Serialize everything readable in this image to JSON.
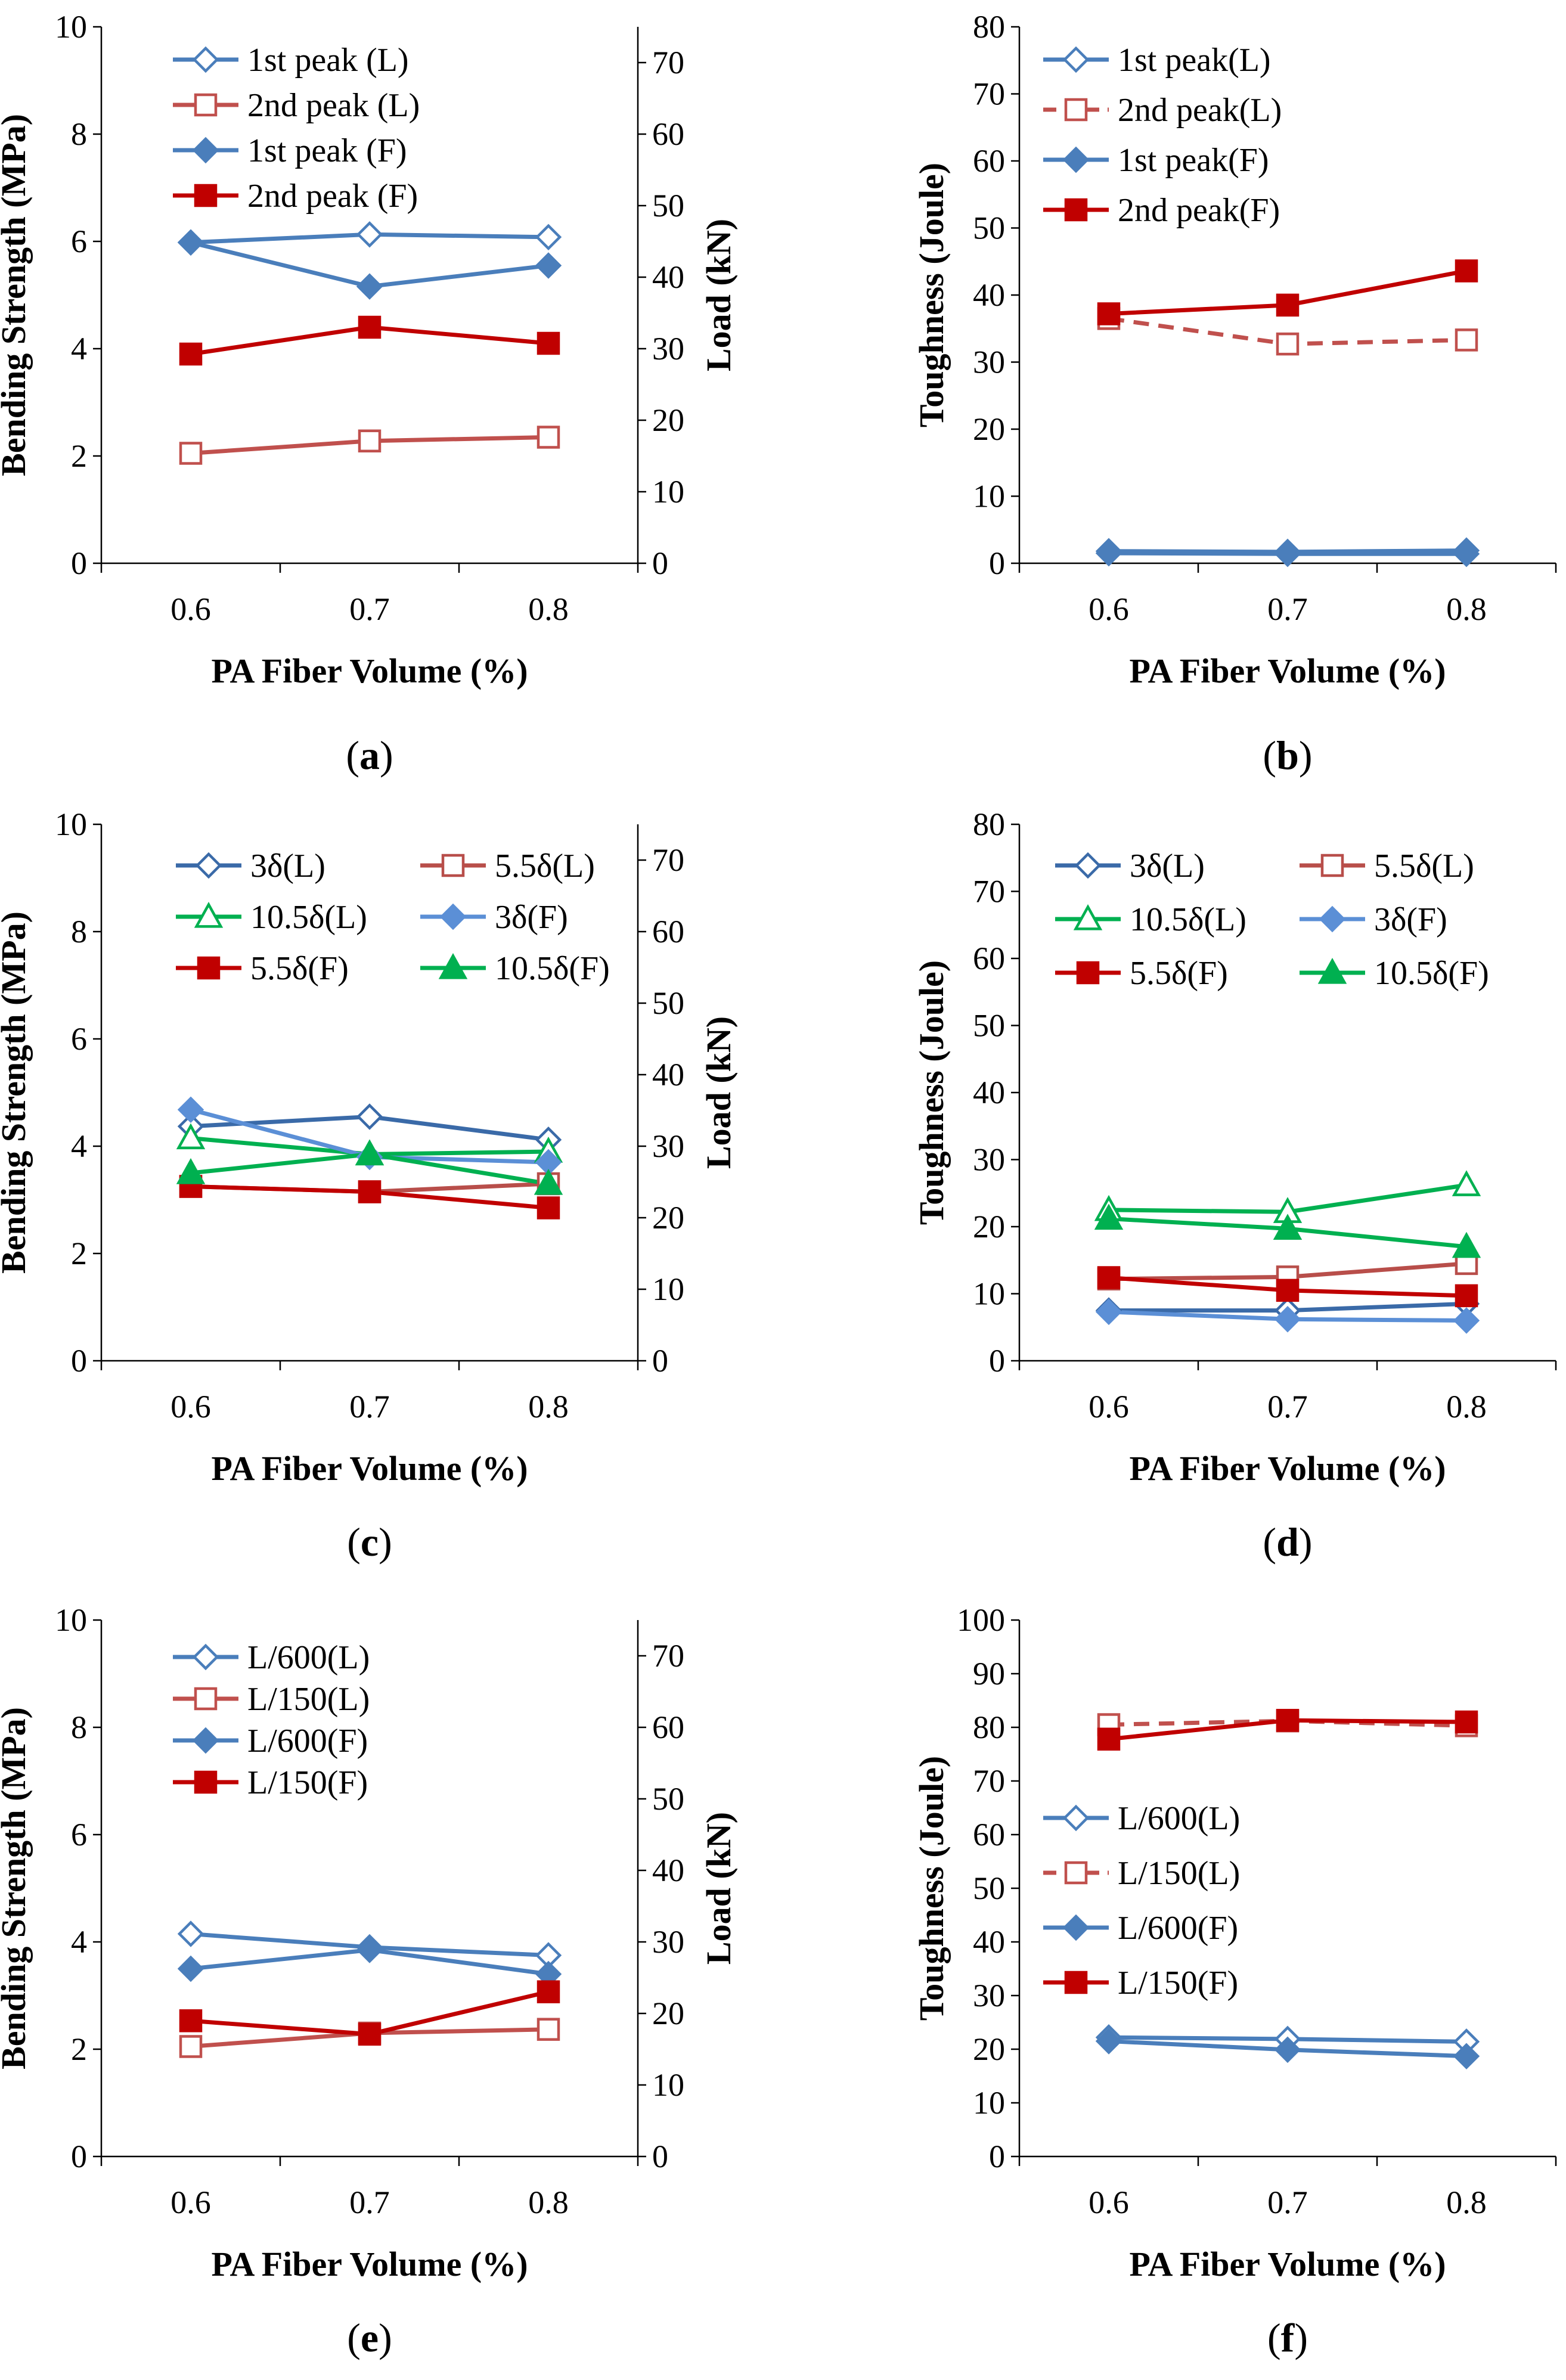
{
  "chart_data": [
    {
      "panel": "a",
      "type": "line",
      "caption": {
        "open": "(",
        "letter": "a",
        "close": ")"
      },
      "xlabel": "PA Fiber Volume (%)",
      "ylabel": "Bending Strength (MPa)",
      "y2label": "Load (kN)",
      "x": [
        0.6,
        0.7,
        0.8
      ],
      "x_ticks": [
        "0.6",
        "0.7",
        "0.8"
      ],
      "xlim": [
        0.55,
        0.85
      ],
      "ylim": [
        0,
        10
      ],
      "y_ticks": [
        "0",
        "2",
        "4",
        "6",
        "8",
        "10"
      ],
      "y2lim": [
        0,
        75
      ],
      "y2_ticks": [
        "0",
        "10",
        "20",
        "30",
        "40",
        "50",
        "60",
        "70"
      ],
      "legend_layout": "single-column",
      "series": [
        {
          "name": "1st peak (L)",
          "values": [
            5.98,
            6.13,
            6.08
          ],
          "color": "#4a7ebb",
          "marker": "diamond-open",
          "dash": false
        },
        {
          "name": "2nd peak (L)",
          "values": [
            2.05,
            2.28,
            2.35
          ],
          "color": "#c0504d",
          "marker": "square-open",
          "dash": false
        },
        {
          "name": "1st peak (F)",
          "values": [
            5.98,
            5.16,
            5.55
          ],
          "color": "#4a7ebb",
          "marker": "diamond",
          "dash": false
        },
        {
          "name": "2nd peak (F)",
          "values": [
            3.9,
            4.4,
            4.1
          ],
          "color": "#c00000",
          "marker": "square",
          "dash": false
        }
      ]
    },
    {
      "panel": "b",
      "type": "line",
      "caption": {
        "open": "(",
        "letter": "b",
        "close": ")"
      },
      "xlabel": "PA Fiber Volume (%)",
      "ylabel": "Toughness (Joule)",
      "x": [
        0.6,
        0.7,
        0.8
      ],
      "x_ticks": [
        "0.6",
        "0.7",
        "0.8"
      ],
      "xlim": [
        0.55,
        0.85
      ],
      "ylim": [
        0,
        80
      ],
      "y_ticks": [
        "0",
        "10",
        "20",
        "30",
        "40",
        "50",
        "60",
        "70",
        "80"
      ],
      "legend_layout": "single-column",
      "series": [
        {
          "name": "1st peak(L)",
          "values": [
            1.8,
            1.7,
            1.9
          ],
          "color": "#4a7ebb",
          "marker": "diamond-open",
          "dash": false
        },
        {
          "name": "2nd peak(L)",
          "values": [
            36.5,
            32.7,
            33.3
          ],
          "color": "#c0504d",
          "marker": "square-open",
          "dash": true
        },
        {
          "name": "1st peak(F)",
          "values": [
            1.5,
            1.4,
            1.4
          ],
          "color": "#4a7ebb",
          "marker": "diamond",
          "dash": false
        },
        {
          "name": "2nd peak(F)",
          "values": [
            37.2,
            38.5,
            43.6
          ],
          "color": "#c00000",
          "marker": "square",
          "dash": false
        }
      ]
    },
    {
      "panel": "c",
      "type": "line",
      "caption": {
        "open": "(",
        "letter": "c",
        "close": ")"
      },
      "xlabel": "PA Fiber Volume (%)",
      "ylabel": "Bending Strength (MPa)",
      "y2label": "Load (kN)",
      "x": [
        0.6,
        0.7,
        0.8
      ],
      "x_ticks": [
        "0.6",
        "0.7",
        "0.8"
      ],
      "xlim": [
        0.55,
        0.85
      ],
      "ylim": [
        0,
        10
      ],
      "y_ticks": [
        "0",
        "2",
        "4",
        "6",
        "8",
        "10"
      ],
      "y2lim": [
        0,
        75
      ],
      "y2_ticks": [
        "0",
        "10",
        "20",
        "30",
        "40",
        "50",
        "60",
        "70"
      ],
      "legend_layout": "two-column",
      "series": [
        {
          "name": "3δ(L)",
          "values": [
            4.37,
            4.55,
            4.12
          ],
          "color": "#3a6aa8",
          "marker": "diamond-open",
          "dash": false
        },
        {
          "name": "5.5δ(L)",
          "values": [
            3.25,
            3.15,
            3.3
          ],
          "color": "#b84e4a",
          "marker": "square-open",
          "dash": false
        },
        {
          "name": "10.5δ(L)",
          "values": [
            4.15,
            3.85,
            3.9
          ],
          "color": "#00b050",
          "marker": "triangle-open",
          "dash": false
        },
        {
          "name": "3δ(F)",
          "values": [
            4.68,
            3.8,
            3.7
          ],
          "color": "#5b8fd6",
          "marker": "diamond",
          "dash": false
        },
        {
          "name": "5.5δ(F)",
          "values": [
            3.25,
            3.15,
            2.85
          ],
          "color": "#c00000",
          "marker": "square",
          "dash": false
        },
        {
          "name": "10.5δ(F)",
          "values": [
            3.5,
            3.85,
            3.3
          ],
          "color": "#00b050",
          "marker": "triangle",
          "dash": false
        }
      ]
    },
    {
      "panel": "d",
      "type": "line",
      "caption": {
        "open": "(",
        "letter": "d",
        "close": ")"
      },
      "xlabel": "PA Fiber Volume (%)",
      "ylabel": "Toughness (Joule)",
      "x": [
        0.6,
        0.7,
        0.8
      ],
      "x_ticks": [
        "0.6",
        "0.7",
        "0.8"
      ],
      "xlim": [
        0.55,
        0.85
      ],
      "ylim": [
        0,
        80
      ],
      "y_ticks": [
        "0",
        "10",
        "20",
        "30",
        "40",
        "50",
        "60",
        "70",
        "80"
      ],
      "legend_layout": "two-column",
      "series": [
        {
          "name": "3δ(L)",
          "values": [
            7.5,
            7.5,
            8.5
          ],
          "color": "#3a6aa8",
          "marker": "diamond-open",
          "dash": false
        },
        {
          "name": "5.5δ(L)",
          "values": [
            12.2,
            12.5,
            14.5
          ],
          "color": "#b84e4a",
          "marker": "square-open",
          "dash": false
        },
        {
          "name": "10.5δ(L)",
          "values": [
            22.5,
            22.2,
            26.2
          ],
          "color": "#00b050",
          "marker": "triangle-open",
          "dash": false
        },
        {
          "name": "3δ(F)",
          "values": [
            7.3,
            6.2,
            6.0
          ],
          "color": "#5b8fd6",
          "marker": "diamond",
          "dash": false
        },
        {
          "name": "5.5δ(F)",
          "values": [
            12.4,
            10.5,
            9.7
          ],
          "color": "#c00000",
          "marker": "square",
          "dash": false
        },
        {
          "name": "10.5δ(F)",
          "values": [
            21.2,
            19.7,
            17.0
          ],
          "color": "#00b050",
          "marker": "triangle",
          "dash": false
        }
      ]
    },
    {
      "panel": "e",
      "type": "line",
      "caption": {
        "open": "(",
        "letter": "e",
        "close": ")"
      },
      "xlabel": "PA Fiber Volume (%)",
      "ylabel": "Bending Strength (MPa)",
      "y2label": "Load (kN)",
      "x": [
        0.6,
        0.7,
        0.8
      ],
      "x_ticks": [
        "0.6",
        "0.7",
        "0.8"
      ],
      "xlim": [
        0.55,
        0.85
      ],
      "ylim": [
        0,
        10
      ],
      "y_ticks": [
        "0",
        "2",
        "4",
        "6",
        "8",
        "10"
      ],
      "y2lim": [
        0,
        75
      ],
      "y2_ticks": [
        "0",
        "10",
        "20",
        "30",
        "40",
        "50",
        "60",
        "70"
      ],
      "legend_layout": "single-column",
      "series": [
        {
          "name": "L/600(L)",
          "values": [
            4.15,
            3.9,
            3.75
          ],
          "color": "#4a7ebb",
          "marker": "diamond-open",
          "dash": false
        },
        {
          "name": "L/150(L)",
          "values": [
            2.05,
            2.3,
            2.37
          ],
          "color": "#c0504d",
          "marker": "square-open",
          "dash": false
        },
        {
          "name": "L/600(F)",
          "values": [
            3.5,
            3.85,
            3.4
          ],
          "color": "#4a7ebb",
          "marker": "diamond",
          "dash": false
        },
        {
          "name": "L/150(F)",
          "values": [
            2.53,
            2.28,
            3.07
          ],
          "color": "#c00000",
          "marker": "square",
          "dash": false
        }
      ]
    },
    {
      "panel": "f",
      "type": "line",
      "caption": {
        "open": "(",
        "letter": "f",
        "close": ")"
      },
      "xlabel": "PA Fiber Volume (%)",
      "ylabel": "Toughness (Joule)",
      "x": [
        0.6,
        0.7,
        0.8
      ],
      "x_ticks": [
        "0.6",
        "0.7",
        "0.8"
      ],
      "xlim": [
        0.55,
        0.85
      ],
      "ylim": [
        0,
        100
      ],
      "y_ticks": [
        "0",
        "10",
        "20",
        "30",
        "40",
        "50",
        "60",
        "70",
        "80",
        "90",
        "100"
      ],
      "legend_layout": "single-column",
      "series": [
        {
          "name": "L/600(L)",
          "values": [
            22.2,
            21.9,
            21.4
          ],
          "color": "#4a7ebb",
          "marker": "diamond-open",
          "dash": false
        },
        {
          "name": "L/150(L)",
          "values": [
            80.5,
            81.2,
            80.3
          ],
          "color": "#c0504d",
          "marker": "square-open",
          "dash": true
        },
        {
          "name": "L/600(F)",
          "values": [
            21.5,
            19.9,
            18.7
          ],
          "color": "#4a7ebb",
          "marker": "diamond",
          "dash": false
        },
        {
          "name": "L/150(F)",
          "values": [
            77.8,
            81.3,
            81.0
          ],
          "color": "#c00000",
          "marker": "square",
          "dash": false
        }
      ]
    }
  ]
}
